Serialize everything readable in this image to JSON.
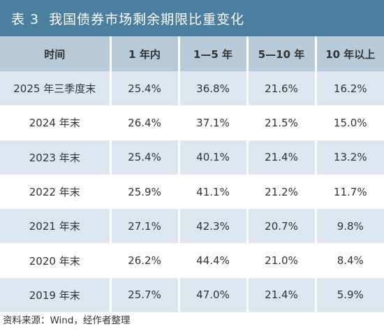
{
  "title": {
    "number": "表 3",
    "text": "我国债券市场剩余期限比重变化"
  },
  "table": {
    "headers": [
      "时间",
      "1 年内",
      "1—5 年",
      "5—10 年",
      "10 年以上"
    ],
    "rows": [
      [
        "2025 年三季度末",
        "25.4%",
        "36.8%",
        "21.6%",
        "16.2%"
      ],
      [
        "2024 年末",
        "26.4%",
        "37.1%",
        "21.5%",
        "15.0%"
      ],
      [
        "2023 年末",
        "25.4%",
        "40.1%",
        "21.4%",
        "13.2%"
      ],
      [
        "2022 年末",
        "25.9%",
        "41.1%",
        "21.2%",
        "11.7%"
      ],
      [
        "2021 年末",
        "27.1%",
        "42.3%",
        "20.7%",
        "9.8%"
      ],
      [
        "2020 年末",
        "26.2%",
        "44.4%",
        "21.0%",
        "8.4%"
      ],
      [
        "2019 年末",
        "25.7%",
        "47.0%",
        "21.4%",
        "5.9%"
      ]
    ]
  },
  "source": "资料来源：Wind，经作者整理",
  "colors": {
    "title_bg": "#4a7f9f",
    "header_bg": "#b8c9d8",
    "stripe_bg": "#dde6ee"
  }
}
